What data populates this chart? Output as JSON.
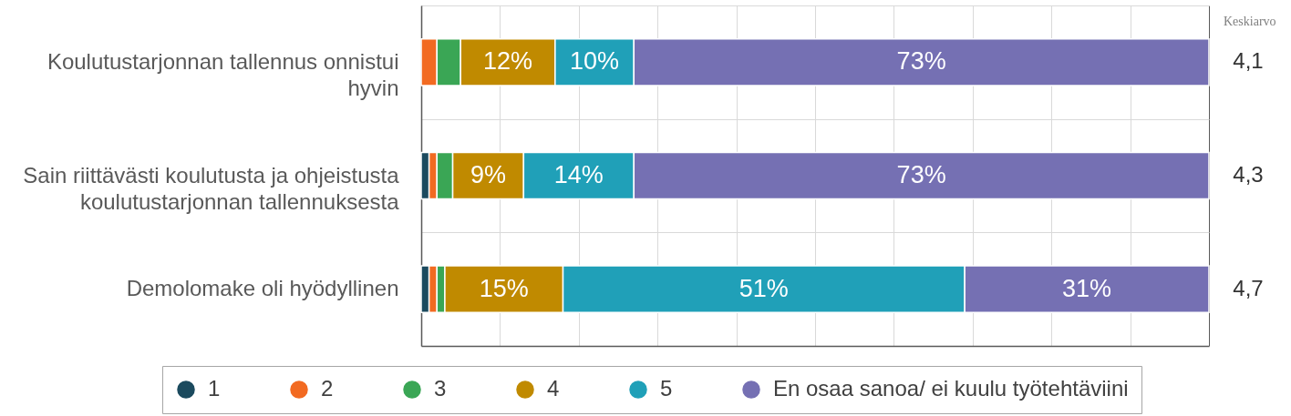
{
  "chart_data": {
    "type": "bar",
    "orientation": "horizontal",
    "stacked": true,
    "categories": [
      "Koulutustarjonnan tallennus onnistui hyvin",
      "Sain riittävästi koulutusta ja ohjeistusta koulutustarjonnan tallennuksesta",
      "Demolomake oli hyödyllinen"
    ],
    "series": [
      {
        "name": "1",
        "color": "#1b4a5e",
        "values": [
          0,
          1,
          1
        ]
      },
      {
        "name": "2",
        "color": "#f26a21",
        "values": [
          2,
          1,
          1
        ]
      },
      {
        "name": "3",
        "color": "#3aa655",
        "values": [
          3,
          2,
          1
        ]
      },
      {
        "name": "4",
        "color": "#c08a00",
        "values": [
          12,
          9,
          15
        ],
        "value_labels": [
          "12%",
          "9%",
          "15%"
        ]
      },
      {
        "name": "5",
        "color": "#20a0b8",
        "values": [
          10,
          14,
          51
        ],
        "value_labels": [
          "10%",
          "14%",
          "51%"
        ]
      },
      {
        "name": "En osaa sanoa/ ei kuulu työtehtäviini",
        "color": "#7570b3",
        "values": [
          73,
          73,
          31
        ],
        "value_labels": [
          "73%",
          "73%",
          "31%"
        ]
      }
    ],
    "xlim": [
      0,
      100
    ],
    "xticks": [
      {
        "value": 0,
        "label": null
      },
      {
        "value": 10,
        "label": null
      },
      {
        "value": 20,
        "label": null
      },
      {
        "value": 30,
        "label": null
      },
      {
        "value": 40,
        "label": null
      },
      {
        "value": 50,
        "label": null
      },
      {
        "value": 60,
        "label": null
      },
      {
        "value": 70,
        "label": null
      },
      {
        "value": 80,
        "label": null
      },
      {
        "value": 90,
        "label": null
      },
      {
        "value": 100,
        "label": null
      }
    ],
    "tick_labels": "y",
    "grid": true,
    "legend": "bottom",
    "annotations": [
      "Keskiarvo",
      "4,1",
      "4,3",
      "4,7"
    ]
  }
}
